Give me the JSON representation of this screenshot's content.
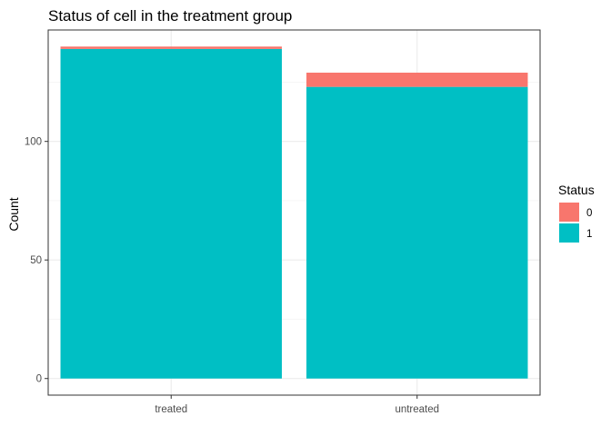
{
  "chart_data": {
    "type": "bar",
    "stacked": true,
    "title": "Status of cell in the treatment group",
    "xlabel": "",
    "ylabel": "Count",
    "categories": [
      "treated",
      "untreated"
    ],
    "series": [
      {
        "name": "0",
        "values": [
          1,
          6
        ],
        "color": "#F8766D"
      },
      {
        "name": "1",
        "values": [
          139,
          123
        ],
        "color": "#00BFC4"
      }
    ],
    "ylim": [
      -7,
      147
    ],
    "yticks": [
      0,
      50,
      100
    ],
    "grid": true,
    "legend": {
      "title": "Status",
      "placement": "right"
    }
  }
}
